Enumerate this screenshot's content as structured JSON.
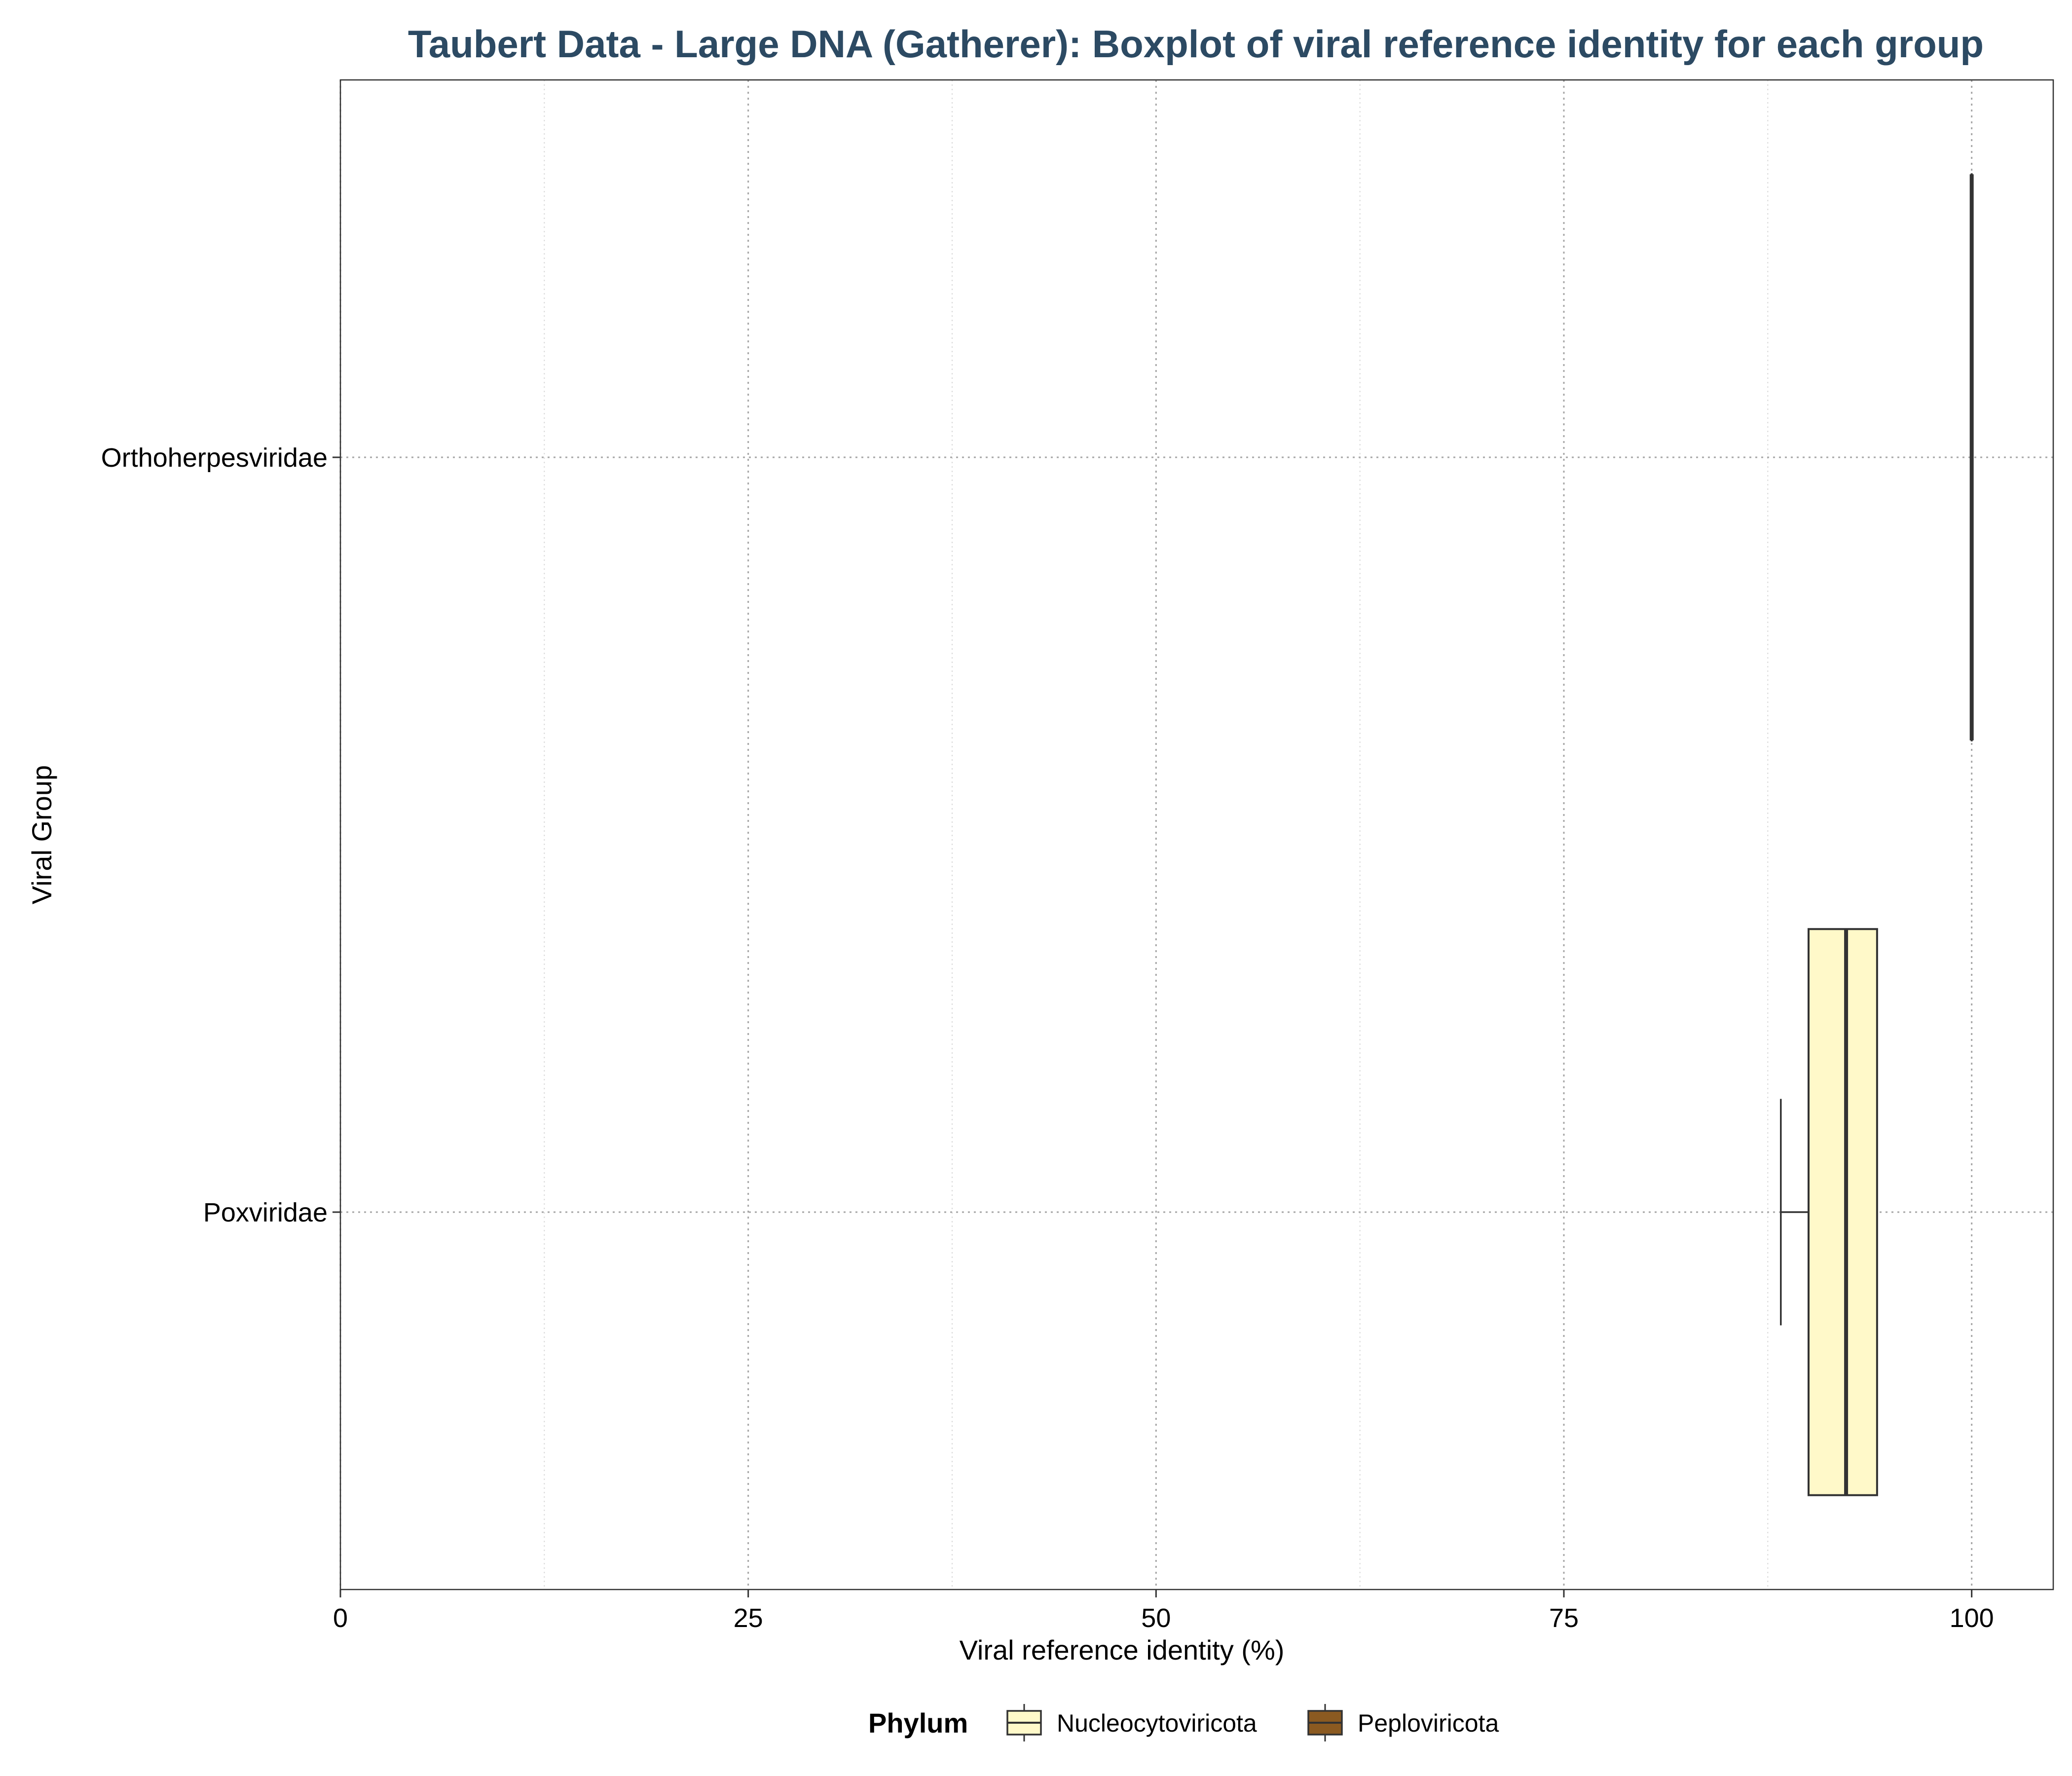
{
  "chart_data": {
    "type": "boxplot",
    "orientation": "horizontal",
    "title": "Taubert Data - Large DNA (Gatherer): Boxplot of viral reference identity for each group",
    "title_color": "#2c4a63",
    "xlabel": "Viral reference identity (%)",
    "ylabel": "Viral Group",
    "xlim": [
      0,
      105
    ],
    "x_ticks": [
      0,
      25,
      50,
      75,
      100
    ],
    "x_tick_labels": [
      "0",
      "25",
      "50",
      "75",
      "100"
    ],
    "categories": [
      "Orthoherpesviridae",
      "Poxviridae"
    ],
    "boxes": [
      {
        "category": "Orthoherpesviridae",
        "phylum": "Peploviricota",
        "min": 100,
        "q1": 100,
        "median": 100,
        "q3": 100,
        "max": 100
      },
      {
        "category": "Poxviridae",
        "phylum": "Nucleocytoviricota",
        "min": 88.3,
        "q1": 90,
        "median": 92.3,
        "q3": 94.2,
        "max": 94.2
      }
    ],
    "grid": "dotted",
    "legend": {
      "title": "Phylum",
      "position": "bottom",
      "entries": [
        {
          "name": "Nucleocytoviricota",
          "color": "#fff9c9"
        },
        {
          "name": "Peploviricota",
          "color": "#8b5a21"
        }
      ]
    }
  }
}
